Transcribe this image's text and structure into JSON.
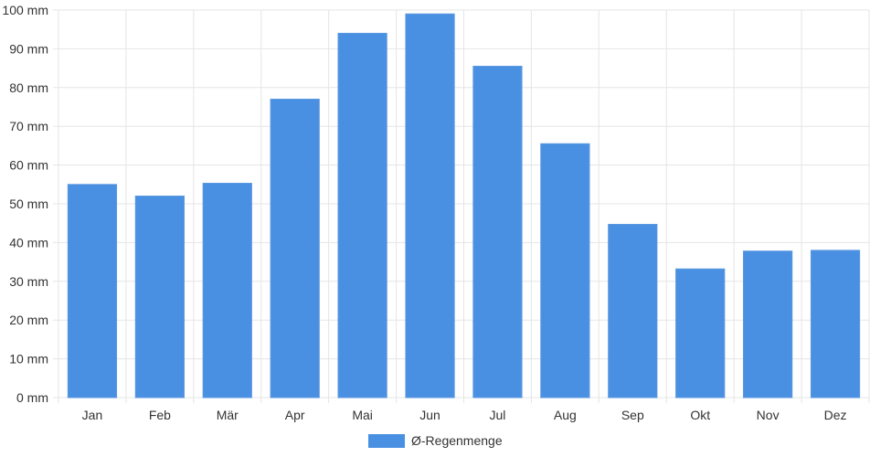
{
  "chart_data": {
    "type": "bar",
    "categories": [
      "Jan",
      "Feb",
      "Mär",
      "Apr",
      "Mai",
      "Jun",
      "Jul",
      "Aug",
      "Sep",
      "Okt",
      "Nov",
      "Dez"
    ],
    "series": [
      {
        "name": "Ø-Regenmenge",
        "color": "#4a90e2",
        "values": [
          55,
          52,
          55.3,
          77,
          94,
          99,
          85.5,
          65.5,
          44.7,
          33.2,
          37.8,
          38
        ]
      }
    ],
    "ylim": [
      0,
      100
    ],
    "y_ticks": [
      0,
      10,
      20,
      30,
      40,
      50,
      60,
      70,
      80,
      90,
      100
    ],
    "y_tick_suffix": " mm",
    "grid": true,
    "legend": "bottom-center"
  }
}
